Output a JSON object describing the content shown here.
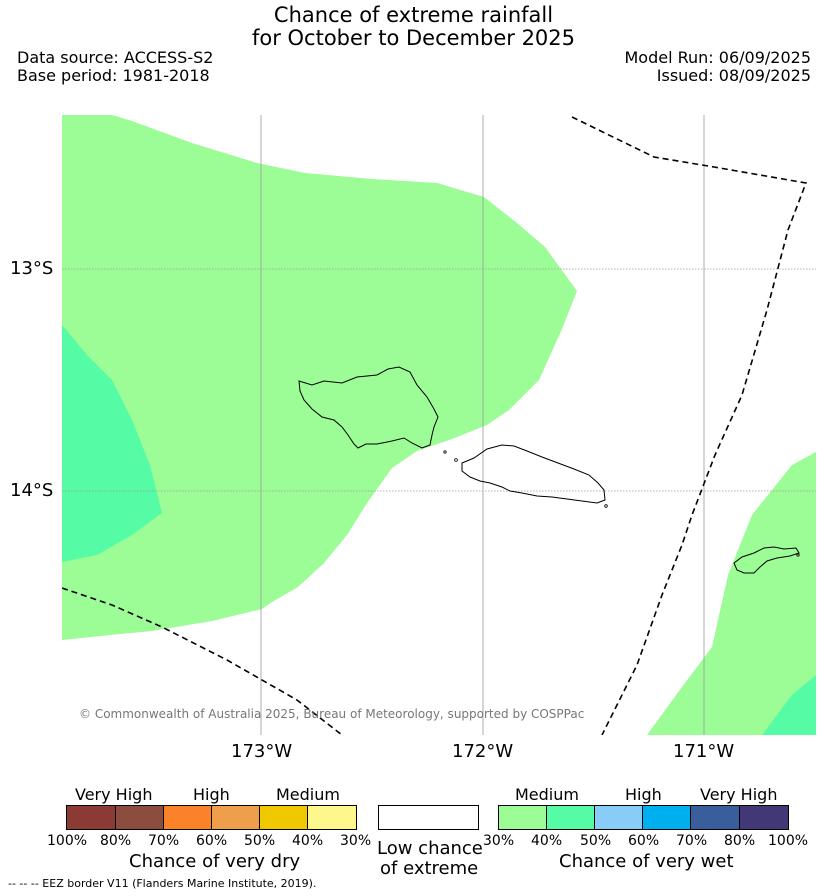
{
  "title": {
    "line1": "Chance of extreme rainfall",
    "line2": "for October to December 2025"
  },
  "meta": {
    "data_source": "Data source: ACCESS-S2",
    "base_period": "Base period: 1981-2018",
    "model_run": "Model Run: 06/09/2025",
    "issued": "Issued: 08/09/2025"
  },
  "map": {
    "lat_ticks": [
      "13°S",
      "14°S"
    ],
    "lon_ticks": [
      "173°W",
      "172°W",
      "171°W"
    ],
    "credit": "© Commonwealth of Australia 2025, Bureau of Meteorology, supported by COSPPac",
    "colors": {
      "wet_30_40": "#9cfc96",
      "wet_40_50": "#56fba6"
    }
  },
  "legend_dry": {
    "labels": [
      "Very High",
      "High",
      "Medium"
    ],
    "percents": [
      "100%",
      "80%",
      "70%",
      "60%",
      "50%",
      "40%",
      "30%"
    ],
    "caption": "Chance of very dry",
    "colors": [
      "#8b3a34",
      "#8c4c3e",
      "#fb8228",
      "#ef9e4c",
      "#f0c800",
      "#fef88c"
    ]
  },
  "legend_low": {
    "caption_line1": "Low chance",
    "caption_line2": "of extreme",
    "color": "#ffffff"
  },
  "legend_wet": {
    "labels": [
      "Medium",
      "High",
      "Very High"
    ],
    "percents": [
      "30%",
      "40%",
      "50%",
      "60%",
      "70%",
      "80%",
      "100%"
    ],
    "caption": "Chance of very wet",
    "colors": [
      "#9cfc96",
      "#56fba6",
      "#88ccf8",
      "#00b0ee",
      "#3a5e9c",
      "#433876"
    ]
  },
  "footnote": "--  --  -- EEZ border V11 (Flanders Marine Institute, 2019)."
}
